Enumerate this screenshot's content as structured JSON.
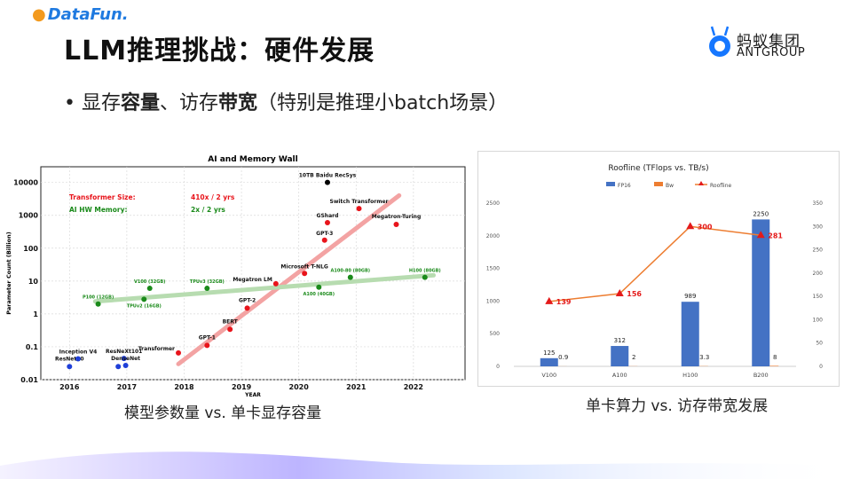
{
  "brand": {
    "datafun_logo": "DataFun.",
    "ant_cn": "蚂蚁集团",
    "ant_en": "ANTGROUP"
  },
  "slide": {
    "title": "LLM推理挑战：硬件发展",
    "bullet_parts": [
      {
        "text": "显存",
        "bold": false
      },
      {
        "text": "容量",
        "bold": true
      },
      {
        "text": "、访存",
        "bold": false
      },
      {
        "text": "带宽",
        "bold": true
      },
      {
        "text": "（特别是推理小batch场景）",
        "bold": false
      }
    ],
    "caption_left": "模型参数量 vs. 单卡显存容量",
    "caption_right": "单卡算力 vs. 访存带宽发展"
  },
  "colors": {
    "red": "#e8141b",
    "green": "#1a8a1a",
    "blue": "#1f3fd8",
    "bar": "#4472c4",
    "line": "#ed7d31",
    "triangle": "#e41a1a"
  },
  "chart_data": [
    {
      "type": "scatter",
      "title": "AI and Memory Wall",
      "xlabel": "YEAR",
      "ylabel": "Parameter Count (Billion)",
      "yscale": "log",
      "xlim": [
        2015.5,
        2022.9
      ],
      "ylim": [
        0.01,
        30000
      ],
      "x_ticks": [
        "2016",
        "2017",
        "2018",
        "2019",
        "2020",
        "2021",
        "2022"
      ],
      "y_ticks": [
        "0.01",
        "0.1",
        "1",
        "10",
        "100",
        "1000",
        "10000"
      ],
      "annotations": [
        {
          "label": "Transformer Size:",
          "value": "410x / 2 yrs",
          "color": "red"
        },
        {
          "label": "AI HW Memory:",
          "value": "2x / 2 yrs",
          "color": "green"
        }
      ],
      "series": [
        {
          "name": "models_blue",
          "color": "blue",
          "points": [
            {
              "x": 2016.0,
              "y": 0.025,
              "label": "ResNet50"
            },
            {
              "x": 2016.15,
              "y": 0.043,
              "label": "Inception V4"
            },
            {
              "x": 2016.85,
              "y": 0.025,
              "label": ""
            },
            {
              "x": 2016.95,
              "y": 0.044,
              "label": "ResNeXt101"
            },
            {
              "x": 2016.98,
              "y": 0.027,
              "label": "DenseNet"
            }
          ]
        },
        {
          "name": "models_red",
          "color": "red",
          "points": [
            {
              "x": 2017.9,
              "y": 0.065,
              "label": "Transformer"
            },
            {
              "x": 2018.4,
              "y": 0.11,
              "label": "GPT-1"
            },
            {
              "x": 2018.8,
              "y": 0.34,
              "label": "BERT"
            },
            {
              "x": 2019.1,
              "y": 1.5,
              "label": "GPT-2"
            },
            {
              "x": 2019.6,
              "y": 8.3,
              "label": "Megatron LM"
            },
            {
              "x": 2020.1,
              "y": 17,
              "label": "Microsoft T-NLG"
            },
            {
              "x": 2020.45,
              "y": 175,
              "label": "GPT-3"
            },
            {
              "x": 2020.5,
              "y": 600,
              "label": "GShard"
            },
            {
              "x": 2021.05,
              "y": 1600,
              "label": "Switch Transformer"
            },
            {
              "x": 2021.7,
              "y": 530,
              "label": "Megatron-Turing"
            }
          ]
        },
        {
          "name": "recsys",
          "color": "black",
          "points": [
            {
              "x": 2020.5,
              "y": 10000,
              "label": "10TB Baidu RecSys"
            }
          ]
        },
        {
          "name": "hw_memory",
          "color": "green",
          "points": [
            {
              "x": 2016.5,
              "y": 2,
              "label": "P100 (12GB)"
            },
            {
              "x": 2017.4,
              "y": 6,
              "label": "V100 (32GB)"
            },
            {
              "x": 2017.3,
              "y": 2.8,
              "label": "TPUv2 (16GB)"
            },
            {
              "x": 2018.4,
              "y": 6,
              "label": "TPUv3 (32GB)"
            },
            {
              "x": 2020.35,
              "y": 6.5,
              "label": "A100 (40GB)"
            },
            {
              "x": 2020.9,
              "y": 13,
              "label": "A100-80 (80GB)"
            },
            {
              "x": 2022.2,
              "y": 13,
              "label": "H100 (80GB)"
            }
          ]
        }
      ],
      "trend_red": {
        "x": [
          2017.9,
          2021.75
        ],
        "y": [
          0.03,
          4000
        ]
      },
      "trend_green": {
        "x": [
          2016.45,
          2022.35
        ],
        "y": [
          2.4,
          15
        ]
      }
    },
    {
      "type": "bar",
      "title": "Roofline (TFlops vs. TB/s)",
      "categories": [
        "V100",
        "A100",
        "H100",
        "B200"
      ],
      "series": [
        {
          "name": "FP16",
          "values": [
            125,
            312,
            989,
            2250
          ]
        },
        {
          "name": "Bw",
          "values": [
            0.9,
            2,
            3.3,
            8
          ]
        },
        {
          "name": "Roofline",
          "values": [
            139,
            156,
            300,
            281
          ]
        }
      ],
      "y_left": {
        "ylim": [
          0,
          2500
        ],
        "ticks": [
          "0",
          "500",
          "1000",
          "1500",
          "2000",
          "2500"
        ]
      },
      "y_right": {
        "ylim": [
          0,
          350
        ],
        "ticks": [
          "0",
          "50",
          "100",
          "150",
          "200",
          "250",
          "300",
          "350"
        ]
      }
    }
  ]
}
